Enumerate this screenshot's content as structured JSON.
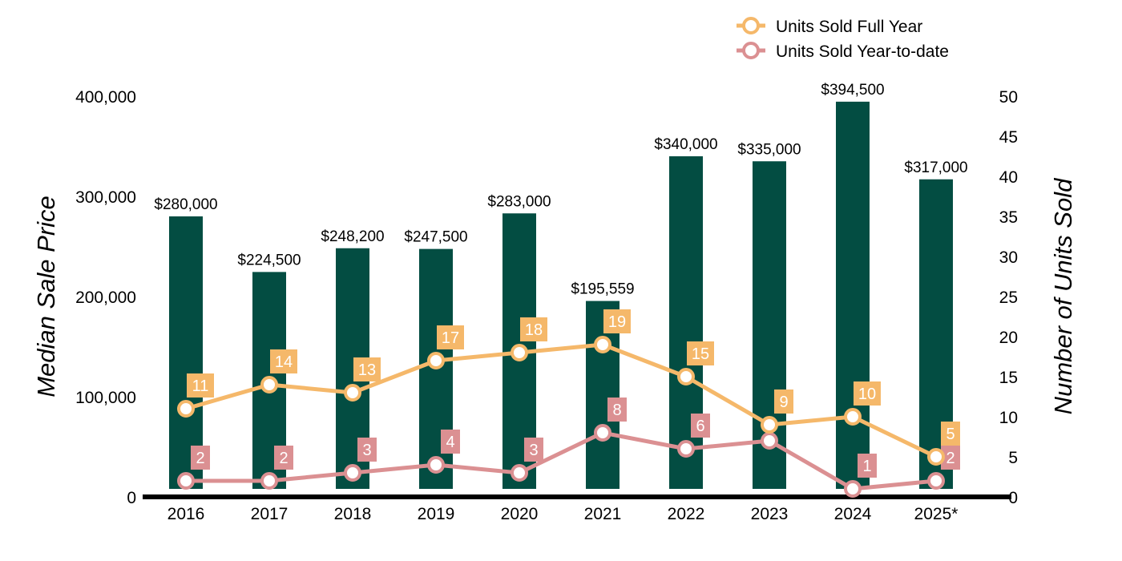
{
  "chart_data": {
    "type": "bar",
    "categories": [
      "2016",
      "2017",
      "2018",
      "2019",
      "2020",
      "2021",
      "2022",
      "2023",
      "2024",
      "2025*"
    ],
    "series": [
      {
        "name": "Median Sale Price",
        "axis": "left",
        "type": "bar",
        "color": "#034d42",
        "values": [
          280000,
          224500,
          248200,
          247500,
          283000,
          195559,
          340000,
          335000,
          394500,
          317000
        ],
        "labels": [
          "$280,000",
          "$224,500",
          "$248,200",
          "$247,500",
          "$283,000",
          "$195,559",
          "$340,000",
          "$335,000",
          "$394,500",
          "$317,000"
        ]
      },
      {
        "name": "Units Sold Full Year",
        "axis": "right",
        "type": "line",
        "color": "#f5b86a",
        "values": [
          11,
          14,
          13,
          17,
          18,
          19,
          15,
          9,
          10,
          5
        ]
      },
      {
        "name": "Units Sold Year-to-date",
        "axis": "right",
        "type": "line",
        "color": "#db9092",
        "values": [
          2,
          2,
          3,
          4,
          3,
          8,
          6,
          7,
          1,
          2
        ],
        "labels": [
          "2",
          "2",
          "3",
          "4",
          "3",
          "8",
          "6",
          "",
          "1",
          "2"
        ]
      }
    ],
    "ylabel": "Median Sale Price",
    "y2label": "Number of Units Sold",
    "ylim": [
      0,
      400000
    ],
    "y2lim": [
      0,
      50
    ],
    "yticks": [
      "0",
      "100,000",
      "200,000",
      "300,000",
      "400,000"
    ],
    "y2ticks": [
      "0",
      "5",
      "10",
      "15",
      "20",
      "25",
      "30",
      "35",
      "40",
      "45",
      "50"
    ],
    "legend": {
      "position": "top-right",
      "items": [
        "Units Sold Full Year",
        "Units Sold Year-to-date"
      ]
    },
    "grid": false
  }
}
